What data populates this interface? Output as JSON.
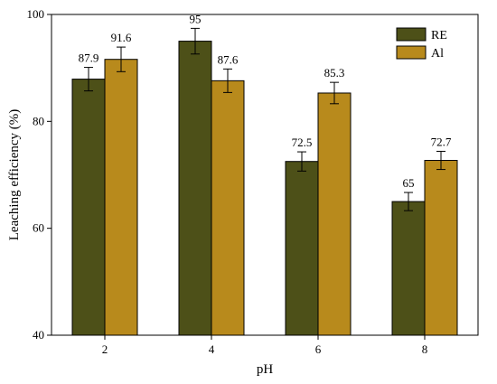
{
  "chart_data": {
    "type": "bar",
    "xlabel": "pH",
    "ylabel": "Leaching efficiency (%)",
    "categories": [
      "2",
      "4",
      "6",
      "8"
    ],
    "ylim": [
      40,
      100
    ],
    "yticks": [
      40,
      60,
      80,
      100
    ],
    "grid": false,
    "legend_position": "top-right",
    "series": [
      {
        "name": "RE",
        "color": "#4d5018",
        "values": [
          87.9,
          95,
          72.5,
          65
        ],
        "labels": [
          "87.9",
          "95",
          "72.5",
          "65"
        ],
        "errors": [
          2.2,
          2.4,
          1.8,
          1.7
        ]
      },
      {
        "name": "Al",
        "color": "#b88a1c",
        "values": [
          91.6,
          87.6,
          85.3,
          72.7
        ],
        "labels": [
          "91.6",
          "87.6",
          "85.3",
          "72.7"
        ],
        "errors": [
          2.3,
          2.2,
          2.0,
          1.7
        ]
      }
    ]
  }
}
